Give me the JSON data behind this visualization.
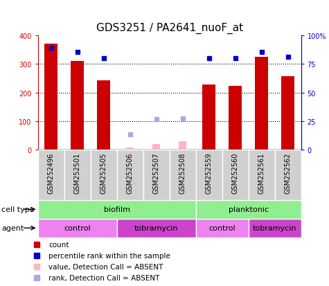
{
  "title": "GDS3251 / PA2641_nuoF_at",
  "samples": [
    "GSM252496",
    "GSM252501",
    "GSM252505",
    "GSM252506",
    "GSM252507",
    "GSM252508",
    "GSM252559",
    "GSM252560",
    "GSM252561",
    "GSM252562"
  ],
  "count_values": [
    370,
    310,
    242,
    null,
    null,
    null,
    228,
    222,
    325,
    258
  ],
  "count_absent": [
    null,
    null,
    null,
    8,
    20,
    30,
    null,
    null,
    null,
    null
  ],
  "percentile_values_left": [
    356,
    342,
    320,
    null,
    null,
    null,
    320,
    320,
    342,
    325
  ],
  "percentile_absent_left": [
    null,
    null,
    null,
    55,
    108,
    110,
    null,
    null,
    null,
    null
  ],
  "cell_type_groups": [
    {
      "label": "biofilm",
      "start": 0,
      "end": 6,
      "color": "#90EE90"
    },
    {
      "label": "planktonic",
      "start": 6,
      "end": 10,
      "color": "#90EE90"
    }
  ],
  "agent_groups": [
    {
      "label": "control",
      "start": 0,
      "end": 3,
      "color": "#EE82EE"
    },
    {
      "label": "tobramycin",
      "start": 3,
      "end": 6,
      "color": "#CC44CC"
    },
    {
      "label": "control",
      "start": 6,
      "end": 8,
      "color": "#EE82EE"
    },
    {
      "label": "tobramycin",
      "start": 8,
      "end": 10,
      "color": "#CC44CC"
    }
  ],
  "ylim_left": [
    0,
    400
  ],
  "ylim_right": [
    0,
    100
  ],
  "yticks_left": [
    0,
    100,
    200,
    300,
    400
  ],
  "yticks_right": [
    0,
    25,
    50,
    75,
    100
  ],
  "yticklabels_right": [
    "0",
    "25",
    "50",
    "75",
    "100%"
  ],
  "bar_color": "#CC0000",
  "bar_absent_color": "#FFB6C1",
  "dot_color": "#0000CC",
  "dot_absent_color": "#AAAADD",
  "title_fontsize": 11,
  "tick_fontsize": 7,
  "label_fontsize": 8,
  "annotation_fontsize": 7.5,
  "bar_width": 0.5
}
